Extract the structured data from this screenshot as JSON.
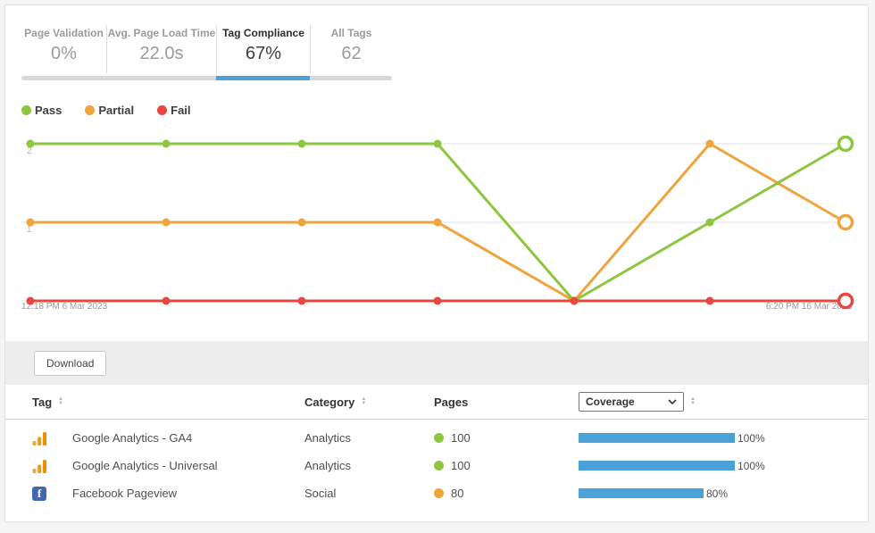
{
  "tabs": [
    {
      "label": "Page Validation",
      "value": "0%",
      "active": false
    },
    {
      "label": "Avg. Page Load Time",
      "value": "22.0s",
      "active": false
    },
    {
      "label": "Tag Compliance",
      "value": "67%",
      "active": true
    },
    {
      "label": "All Tags",
      "value": "62",
      "active": false
    }
  ],
  "legend": [
    {
      "label": "Pass",
      "color": "#8dc63f"
    },
    {
      "label": "Partial",
      "color": "#f0a43e"
    },
    {
      "label": "Fail",
      "color": "#e8473f"
    }
  ],
  "chart_data": {
    "type": "line",
    "num_points": 7,
    "y_ticks": [
      1,
      2
    ],
    "ylim": [
      0,
      2
    ],
    "grid": "horizontal",
    "legend_position": "top-left",
    "x_axis_labels": {
      "left": "12:18 PM 6 Mar 2023",
      "right": "6:20 PM 16 Mar 2023"
    },
    "series": [
      {
        "name": "Pass",
        "color": "#8dc63f",
        "values": [
          2,
          2,
          2,
          2,
          0,
          1,
          2
        ]
      },
      {
        "name": "Partial",
        "color": "#f0a43e",
        "values": [
          1,
          1,
          1,
          1,
          0,
          2,
          1
        ]
      },
      {
        "name": "Fail",
        "color": "#e8473f",
        "values": [
          0,
          0,
          0,
          0,
          0,
          0,
          0
        ]
      }
    ]
  },
  "toolbar": {
    "download_label": "Download"
  },
  "table": {
    "headers": {
      "tag": "Tag",
      "category": "Category",
      "pages": "Pages"
    },
    "coverage_dropdown": {
      "selected": "Coverage"
    },
    "rows": [
      {
        "icon": "google-analytics-icon",
        "tag": "Google Analytics - GA4",
        "category": "Analytics",
        "pages": "100",
        "pages_dot_color": "#8dc63f",
        "coverage_pct": 100,
        "coverage_label": "100%"
      },
      {
        "icon": "google-analytics-icon",
        "tag": "Google Analytics - Universal",
        "category": "Analytics",
        "pages": "100",
        "pages_dot_color": "#8dc63f",
        "coverage_pct": 100,
        "coverage_label": "100%"
      },
      {
        "icon": "facebook-icon",
        "tag": "Facebook Pageview",
        "category": "Social",
        "pages": "80",
        "pages_dot_color": "#f0a43e",
        "coverage_pct": 80,
        "coverage_label": "80%"
      }
    ]
  },
  "colors": {
    "accent_blue": "#4da1d9",
    "track_gray": "#d8d8d8"
  }
}
